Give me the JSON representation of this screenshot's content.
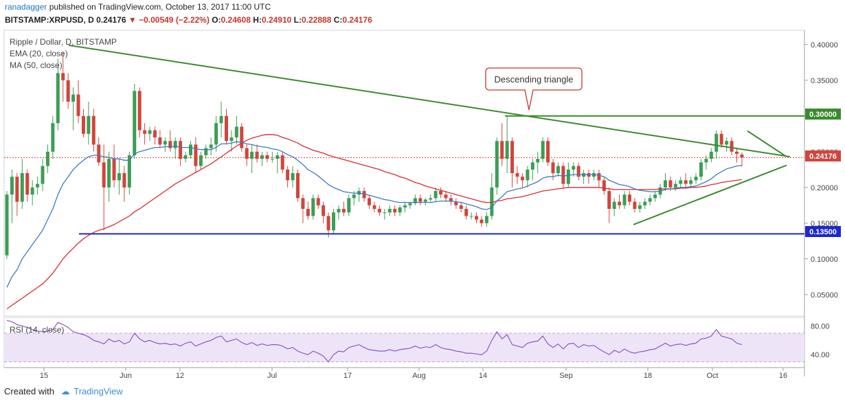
{
  "header": {
    "author": "ranadagger",
    "published": "published on TradingView.com, October 13, 2017 11:00 UTC",
    "symbol": "BITSTAMP:XRPUSD, D",
    "last": "0.24176",
    "arrow": "▼",
    "change": "−0.00549 (−2.22%)",
    "o_label": "O:",
    "o_value": "0.24608",
    "h_label": "H:",
    "h_value": "0.24910",
    "l_label": "L:",
    "l_value": "0.22888",
    "c_label": "C:",
    "c_value": "0.24176"
  },
  "legend": {
    "title": "Ripple / Dollar, D, BITSTAMP",
    "ema": "EMA (20, close)",
    "ma": "MA (50, close)",
    "rsi": "RSI (14, close)"
  },
  "annotations": {
    "callout": "Descending triangle",
    "resistance_label": "0.30000",
    "support_label": "0.13500",
    "last_price_label": "0.24176"
  },
  "footer": {
    "created_with": "Created with",
    "brand": "TradingView"
  },
  "colors": {
    "up": "#3b9e55",
    "down": "#d0453c",
    "ema": "#3a7bbf",
    "ma": "#d62d2d",
    "trend": "#3c8a2e",
    "support": "#1d28c9",
    "rsi": "#8d57c9",
    "rsi_band": "#eee4f7"
  },
  "chart_data": {
    "type": "candlestick",
    "title": "Ripple / Dollar, D, BITSTAMP",
    "x_ticks": [
      "15",
      "Jun",
      "12",
      "Jul",
      "17",
      "Aug",
      "14",
      "Sep",
      "18",
      "Oct",
      "16"
    ],
    "y_ticks": [
      "0.40000",
      "0.35000",
      "0.30000",
      "0.25000",
      "0.20000",
      "0.15000",
      "0.10000",
      "0.05000"
    ],
    "ylim": [
      0.02,
      0.42
    ],
    "rsi_ticks": [
      "80.00",
      "40.00"
    ],
    "rsi_ylim": [
      22,
      92
    ],
    "ohlc": [
      [
        0.105,
        0.195,
        0.1,
        0.19
      ],
      [
        0.19,
        0.225,
        0.15,
        0.215
      ],
      [
        0.215,
        0.22,
        0.16,
        0.18
      ],
      [
        0.18,
        0.24,
        0.17,
        0.22
      ],
      [
        0.22,
        0.225,
        0.18,
        0.19
      ],
      [
        0.19,
        0.21,
        0.175,
        0.2
      ],
      [
        0.2,
        0.215,
        0.19,
        0.205
      ],
      [
        0.205,
        0.24,
        0.195,
        0.23
      ],
      [
        0.23,
        0.26,
        0.22,
        0.25
      ],
      [
        0.25,
        0.3,
        0.24,
        0.29
      ],
      [
        0.29,
        0.38,
        0.28,
        0.36
      ],
      [
        0.36,
        0.39,
        0.32,
        0.35
      ],
      [
        0.35,
        0.36,
        0.31,
        0.32
      ],
      [
        0.32,
        0.34,
        0.28,
        0.33
      ],
      [
        0.33,
        0.35,
        0.29,
        0.3
      ],
      [
        0.3,
        0.31,
        0.27,
        0.275
      ],
      [
        0.275,
        0.32,
        0.26,
        0.3
      ],
      [
        0.3,
        0.31,
        0.25,
        0.26
      ],
      [
        0.26,
        0.27,
        0.23,
        0.235
      ],
      [
        0.235,
        0.26,
        0.14,
        0.2
      ],
      [
        0.2,
        0.25,
        0.18,
        0.24
      ],
      [
        0.24,
        0.26,
        0.2,
        0.21
      ],
      [
        0.21,
        0.24,
        0.19,
        0.22
      ],
      [
        0.22,
        0.23,
        0.18,
        0.2
      ],
      [
        0.2,
        0.25,
        0.19,
        0.245
      ],
      [
        0.245,
        0.345,
        0.24,
        0.335
      ],
      [
        0.335,
        0.34,
        0.27,
        0.28
      ],
      [
        0.28,
        0.29,
        0.26,
        0.275
      ],
      [
        0.275,
        0.285,
        0.265,
        0.28
      ],
      [
        0.28,
        0.285,
        0.26,
        0.27
      ],
      [
        0.27,
        0.28,
        0.255,
        0.26
      ],
      [
        0.26,
        0.27,
        0.25,
        0.265
      ],
      [
        0.265,
        0.28,
        0.25,
        0.255
      ],
      [
        0.255,
        0.27,
        0.24,
        0.265
      ],
      [
        0.265,
        0.27,
        0.23,
        0.24
      ],
      [
        0.24,
        0.25,
        0.235,
        0.245
      ],
      [
        0.245,
        0.265,
        0.24,
        0.26
      ],
      [
        0.26,
        0.27,
        0.22,
        0.23
      ],
      [
        0.23,
        0.25,
        0.225,
        0.245
      ],
      [
        0.245,
        0.26,
        0.24,
        0.255
      ],
      [
        0.255,
        0.27,
        0.245,
        0.26
      ],
      [
        0.26,
        0.3,
        0.25,
        0.29
      ],
      [
        0.29,
        0.32,
        0.27,
        0.3
      ],
      [
        0.3,
        0.31,
        0.26,
        0.265
      ],
      [
        0.265,
        0.28,
        0.25,
        0.27
      ],
      [
        0.27,
        0.3,
        0.26,
        0.285
      ],
      [
        0.285,
        0.29,
        0.25,
        0.255
      ],
      [
        0.255,
        0.26,
        0.23,
        0.24
      ],
      [
        0.24,
        0.26,
        0.22,
        0.25
      ],
      [
        0.25,
        0.26,
        0.235,
        0.24
      ],
      [
        0.24,
        0.25,
        0.23,
        0.245
      ],
      [
        0.245,
        0.25,
        0.235,
        0.24
      ],
      [
        0.24,
        0.25,
        0.235,
        0.24
      ],
      [
        0.24,
        0.25,
        0.22,
        0.245
      ],
      [
        0.245,
        0.25,
        0.22,
        0.225
      ],
      [
        0.225,
        0.23,
        0.2,
        0.21
      ],
      [
        0.21,
        0.23,
        0.2,
        0.22
      ],
      [
        0.22,
        0.225,
        0.18,
        0.185
      ],
      [
        0.185,
        0.19,
        0.15,
        0.17
      ],
      [
        0.17,
        0.18,
        0.155,
        0.16
      ],
      [
        0.16,
        0.19,
        0.155,
        0.185
      ],
      [
        0.185,
        0.19,
        0.17,
        0.175
      ],
      [
        0.175,
        0.18,
        0.15,
        0.16
      ],
      [
        0.16,
        0.165,
        0.13,
        0.14
      ],
      [
        0.14,
        0.17,
        0.135,
        0.165
      ],
      [
        0.165,
        0.175,
        0.155,
        0.17
      ],
      [
        0.17,
        0.18,
        0.16,
        0.165
      ],
      [
        0.165,
        0.19,
        0.16,
        0.185
      ],
      [
        0.185,
        0.195,
        0.175,
        0.19
      ],
      [
        0.19,
        0.2,
        0.18,
        0.195
      ],
      [
        0.195,
        0.2,
        0.18,
        0.185
      ],
      [
        0.185,
        0.19,
        0.17,
        0.175
      ],
      [
        0.175,
        0.18,
        0.165,
        0.17
      ],
      [
        0.17,
        0.175,
        0.16,
        0.165
      ],
      [
        0.165,
        0.17,
        0.155,
        0.165
      ],
      [
        0.165,
        0.175,
        0.16,
        0.17
      ],
      [
        0.17,
        0.175,
        0.16,
        0.165
      ],
      [
        0.165,
        0.175,
        0.16,
        0.172
      ],
      [
        0.172,
        0.18,
        0.165,
        0.175
      ],
      [
        0.175,
        0.18,
        0.17,
        0.178
      ],
      [
        0.178,
        0.19,
        0.175,
        0.185
      ],
      [
        0.185,
        0.19,
        0.175,
        0.18
      ],
      [
        0.18,
        0.185,
        0.175,
        0.183
      ],
      [
        0.183,
        0.19,
        0.18,
        0.185
      ],
      [
        0.185,
        0.2,
        0.18,
        0.195
      ],
      [
        0.195,
        0.2,
        0.185,
        0.19
      ],
      [
        0.19,
        0.195,
        0.18,
        0.185
      ],
      [
        0.185,
        0.19,
        0.175,
        0.18
      ],
      [
        0.18,
        0.185,
        0.17,
        0.175
      ],
      [
        0.175,
        0.18,
        0.165,
        0.17
      ],
      [
        0.17,
        0.175,
        0.155,
        0.16
      ],
      [
        0.16,
        0.165,
        0.155,
        0.16
      ],
      [
        0.16,
        0.165,
        0.15,
        0.155
      ],
      [
        0.155,
        0.16,
        0.145,
        0.15
      ],
      [
        0.15,
        0.165,
        0.145,
        0.16
      ],
      [
        0.16,
        0.22,
        0.155,
        0.2
      ],
      [
        0.2,
        0.27,
        0.19,
        0.265
      ],
      [
        0.265,
        0.29,
        0.23,
        0.24
      ],
      [
        0.24,
        0.3,
        0.22,
        0.265
      ],
      [
        0.265,
        0.27,
        0.2,
        0.22
      ],
      [
        0.22,
        0.23,
        0.205,
        0.215
      ],
      [
        0.215,
        0.22,
        0.2,
        0.21
      ],
      [
        0.21,
        0.23,
        0.2,
        0.225
      ],
      [
        0.225,
        0.24,
        0.21,
        0.235
      ],
      [
        0.235,
        0.25,
        0.22,
        0.24
      ],
      [
        0.24,
        0.27,
        0.235,
        0.265
      ],
      [
        0.265,
        0.27,
        0.23,
        0.235
      ],
      [
        0.235,
        0.24,
        0.21,
        0.22
      ],
      [
        0.22,
        0.235,
        0.215,
        0.23
      ],
      [
        0.23,
        0.235,
        0.2,
        0.205
      ],
      [
        0.205,
        0.235,
        0.2,
        0.225
      ],
      [
        0.225,
        0.235,
        0.215,
        0.23
      ],
      [
        0.23,
        0.235,
        0.21,
        0.215
      ],
      [
        0.215,
        0.225,
        0.205,
        0.22
      ],
      [
        0.22,
        0.225,
        0.205,
        0.215
      ],
      [
        0.215,
        0.225,
        0.21,
        0.22
      ],
      [
        0.22,
        0.225,
        0.2,
        0.21
      ],
      [
        0.21,
        0.215,
        0.19,
        0.195
      ],
      [
        0.195,
        0.2,
        0.15,
        0.17
      ],
      [
        0.17,
        0.185,
        0.16,
        0.18
      ],
      [
        0.18,
        0.19,
        0.17,
        0.175
      ],
      [
        0.175,
        0.195,
        0.17,
        0.19
      ],
      [
        0.19,
        0.195,
        0.175,
        0.18
      ],
      [
        0.18,
        0.185,
        0.165,
        0.17
      ],
      [
        0.17,
        0.18,
        0.165,
        0.175
      ],
      [
        0.175,
        0.185,
        0.17,
        0.18
      ],
      [
        0.18,
        0.19,
        0.175,
        0.185
      ],
      [
        0.185,
        0.195,
        0.18,
        0.19
      ],
      [
        0.19,
        0.205,
        0.185,
        0.2
      ],
      [
        0.2,
        0.22,
        0.195,
        0.21
      ],
      [
        0.21,
        0.215,
        0.195,
        0.2
      ],
      [
        0.2,
        0.21,
        0.195,
        0.205
      ],
      [
        0.205,
        0.215,
        0.2,
        0.21
      ],
      [
        0.21,
        0.22,
        0.2,
        0.205
      ],
      [
        0.205,
        0.215,
        0.2,
        0.21
      ],
      [
        0.21,
        0.22,
        0.205,
        0.215
      ],
      [
        0.215,
        0.24,
        0.21,
        0.235
      ],
      [
        0.235,
        0.245,
        0.225,
        0.24
      ],
      [
        0.24,
        0.255,
        0.235,
        0.25
      ],
      [
        0.25,
        0.28,
        0.24,
        0.275
      ],
      [
        0.275,
        0.28,
        0.255,
        0.26
      ],
      [
        0.26,
        0.27,
        0.25,
        0.265
      ],
      [
        0.265,
        0.27,
        0.245,
        0.25
      ],
      [
        0.25,
        0.255,
        0.235,
        0.247
      ],
      [
        0.246,
        0.249,
        0.229,
        0.242
      ]
    ],
    "ema20": [
      0.06,
      0.075,
      0.085,
      0.1,
      0.11,
      0.12,
      0.13,
      0.14,
      0.155,
      0.17,
      0.19,
      0.205,
      0.215,
      0.225,
      0.232,
      0.238,
      0.243,
      0.245,
      0.245,
      0.243,
      0.242,
      0.24,
      0.24,
      0.238,
      0.238,
      0.247,
      0.25,
      0.252,
      0.254,
      0.256,
      0.256,
      0.257,
      0.257,
      0.258,
      0.256,
      0.256,
      0.256,
      0.254,
      0.253,
      0.253,
      0.253,
      0.256,
      0.261,
      0.261,
      0.262,
      0.264,
      0.263,
      0.261,
      0.26,
      0.258,
      0.257,
      0.256,
      0.254,
      0.253,
      0.25,
      0.246,
      0.243,
      0.238,
      0.232,
      0.225,
      0.221,
      0.216,
      0.21,
      0.204,
      0.2,
      0.197,
      0.194,
      0.193,
      0.192,
      0.192,
      0.191,
      0.189,
      0.187,
      0.185,
      0.183,
      0.182,
      0.18,
      0.179,
      0.179,
      0.179,
      0.179,
      0.179,
      0.179,
      0.179,
      0.18,
      0.181,
      0.181,
      0.181,
      0.18,
      0.179,
      0.177,
      0.175,
      0.173,
      0.17,
      0.169,
      0.172,
      0.181,
      0.187,
      0.194,
      0.196,
      0.198,
      0.199,
      0.202,
      0.205,
      0.208,
      0.213,
      0.215,
      0.215,
      0.217,
      0.216,
      0.217,
      0.218,
      0.218,
      0.218,
      0.218,
      0.218,
      0.217,
      0.215,
      0.21,
      0.207,
      0.204,
      0.203,
      0.201,
      0.198,
      0.196,
      0.195,
      0.194,
      0.194,
      0.195,
      0.197,
      0.198,
      0.199,
      0.2,
      0.2,
      0.201,
      0.202,
      0.205,
      0.208,
      0.212,
      0.218,
      0.222,
      0.226,
      0.228,
      0.23,
      0.231
    ],
    "ma50": [
      0.03,
      0.035,
      0.04,
      0.045,
      0.05,
      0.055,
      0.06,
      0.065,
      0.072,
      0.08,
      0.09,
      0.1,
      0.108,
      0.115,
      0.122,
      0.128,
      0.133,
      0.137,
      0.14,
      0.142,
      0.145,
      0.148,
      0.152,
      0.156,
      0.16,
      0.166,
      0.17,
      0.175,
      0.18,
      0.185,
      0.19,
      0.195,
      0.2,
      0.205,
      0.209,
      0.213,
      0.217,
      0.221,
      0.225,
      0.229,
      0.233,
      0.238,
      0.243,
      0.248,
      0.253,
      0.258,
      0.262,
      0.266,
      0.269,
      0.271,
      0.273,
      0.274,
      0.274,
      0.273,
      0.27,
      0.268,
      0.265,
      0.262,
      0.258,
      0.255,
      0.252,
      0.25,
      0.248,
      0.245,
      0.243,
      0.241,
      0.239,
      0.237,
      0.235,
      0.233,
      0.231,
      0.229,
      0.227,
      0.225,
      0.222,
      0.22,
      0.218,
      0.215,
      0.213,
      0.21,
      0.207,
      0.205,
      0.202,
      0.2,
      0.198,
      0.196,
      0.194,
      0.192,
      0.19,
      0.188,
      0.186,
      0.184,
      0.182,
      0.18,
      0.179,
      0.179,
      0.181,
      0.182,
      0.184,
      0.185,
      0.186,
      0.187,
      0.189,
      0.191,
      0.193,
      0.195,
      0.196,
      0.197,
      0.198,
      0.199,
      0.2,
      0.2,
      0.2,
      0.2,
      0.2,
      0.2,
      0.2,
      0.199,
      0.198,
      0.197,
      0.197,
      0.197,
      0.197,
      0.197,
      0.197,
      0.197,
      0.197,
      0.197,
      0.198,
      0.198,
      0.198,
      0.198,
      0.199,
      0.199,
      0.2,
      0.2,
      0.201,
      0.202,
      0.204,
      0.205,
      0.207,
      0.208,
      0.209,
      0.21,
      0.211
    ],
    "rsi": [
      88,
      86,
      82,
      80,
      78,
      75,
      73,
      72,
      73,
      75,
      85,
      82,
      78,
      72,
      70,
      68,
      65,
      60,
      58,
      55,
      62,
      58,
      60,
      55,
      58,
      70,
      62,
      58,
      60,
      57,
      55,
      56,
      54,
      55,
      52,
      56,
      58,
      52,
      55,
      58,
      60,
      64,
      66,
      58,
      60,
      62,
      57,
      54,
      57,
      53,
      55,
      53,
      54,
      54,
      52,
      48,
      50,
      45,
      42,
      40,
      45,
      42,
      38,
      30,
      40,
      45,
      44,
      50,
      52,
      54,
      50,
      47,
      46,
      45,
      45,
      47,
      45,
      47,
      48,
      49,
      52,
      49,
      51,
      50,
      54,
      50,
      48,
      47,
      45,
      44,
      42,
      42,
      41,
      40,
      45,
      60,
      72,
      62,
      68,
      54,
      52,
      50,
      56,
      58,
      59,
      66,
      55,
      50,
      55,
      48,
      55,
      56,
      50,
      54,
      52,
      53,
      48,
      44,
      40,
      46,
      43,
      48,
      44,
      42,
      44,
      45,
      47,
      48,
      52,
      56,
      52,
      54,
      55,
      53,
      55,
      56,
      62,
      63,
      66,
      75,
      66,
      64,
      62,
      56,
      54
    ]
  }
}
